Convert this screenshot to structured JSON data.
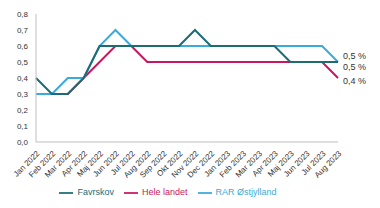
{
  "chart_data": {
    "type": "line",
    "categories": [
      "Jan 2022",
      "Feb 2022",
      "Mar 2022",
      "Apr 2022",
      "Maj 2022",
      "Jun 2022",
      "Jul 2022",
      "Aug 2022",
      "Sep 2022",
      "Okt 2022",
      "Nov 2022",
      "Dec 2022",
      "Jan 2023",
      "Feb 2023",
      "Mar 2023",
      "Apr 2023",
      "Maj 2023",
      "Jun 2023",
      "Jul 2023",
      "Aug 2023"
    ],
    "series": [
      {
        "name": "Hele landet",
        "color": "#c8175d",
        "values": [
          0.3,
          0.3,
          0.3,
          0.4,
          0.5,
          0.6,
          0.6,
          0.5,
          0.5,
          0.5,
          0.5,
          0.5,
          0.5,
          0.5,
          0.5,
          0.5,
          0.5,
          0.5,
          0.5,
          0.4
        ],
        "value_labels": [
          null,
          null,
          null,
          null,
          null,
          null,
          null,
          null,
          null,
          null,
          null,
          null,
          null,
          null,
          null,
          null,
          null,
          null,
          null,
          "0,4 %"
        ]
      },
      {
        "name": "RAR Østjylland",
        "color": "#3aaad8",
        "values": [
          0.3,
          0.3,
          0.4,
          0.4,
          0.6,
          0.7,
          0.6,
          0.6,
          0.6,
          0.6,
          0.6,
          0.6,
          0.6,
          0.6,
          0.6,
          0.6,
          0.6,
          0.6,
          0.6,
          0.5
        ],
        "value_labels": [
          null,
          null,
          null,
          null,
          null,
          null,
          null,
          null,
          null,
          null,
          null,
          null,
          null,
          null,
          null,
          null,
          null,
          null,
          null,
          "0,5 %"
        ]
      },
      {
        "name": "Favrskov",
        "color": "#1d6b74",
        "values": [
          0.4,
          0.3,
          0.3,
          0.4,
          0.6,
          0.6,
          0.6,
          0.6,
          0.6,
          0.6,
          0.7,
          0.6,
          0.6,
          0.6,
          0.6,
          0.6,
          0.5,
          0.5,
          0.5,
          0.5
        ],
        "value_labels": [
          null,
          null,
          null,
          null,
          null,
          null,
          null,
          null,
          null,
          null,
          null,
          null,
          null,
          null,
          null,
          null,
          null,
          null,
          null,
          "0,5 %"
        ]
      }
    ],
    "ylim": [
      0,
      0.8
    ],
    "yticks": [
      {
        "value": 0,
        "label": "0,0"
      },
      {
        "value": 0.1,
        "label": "0,1"
      },
      {
        "value": 0.2,
        "label": "0,2"
      },
      {
        "value": 0.3,
        "label": "0,3"
      },
      {
        "value": 0.4,
        "label": "0,4"
      },
      {
        "value": 0.5,
        "label": "0,5"
      },
      {
        "value": 0.6,
        "label": "0,6"
      },
      {
        "value": 0.7,
        "label": "0,7"
      },
      {
        "value": 0.8,
        "label": "0,8"
      }
    ],
    "grid": false,
    "legend": "bottom",
    "marker": "none"
  }
}
